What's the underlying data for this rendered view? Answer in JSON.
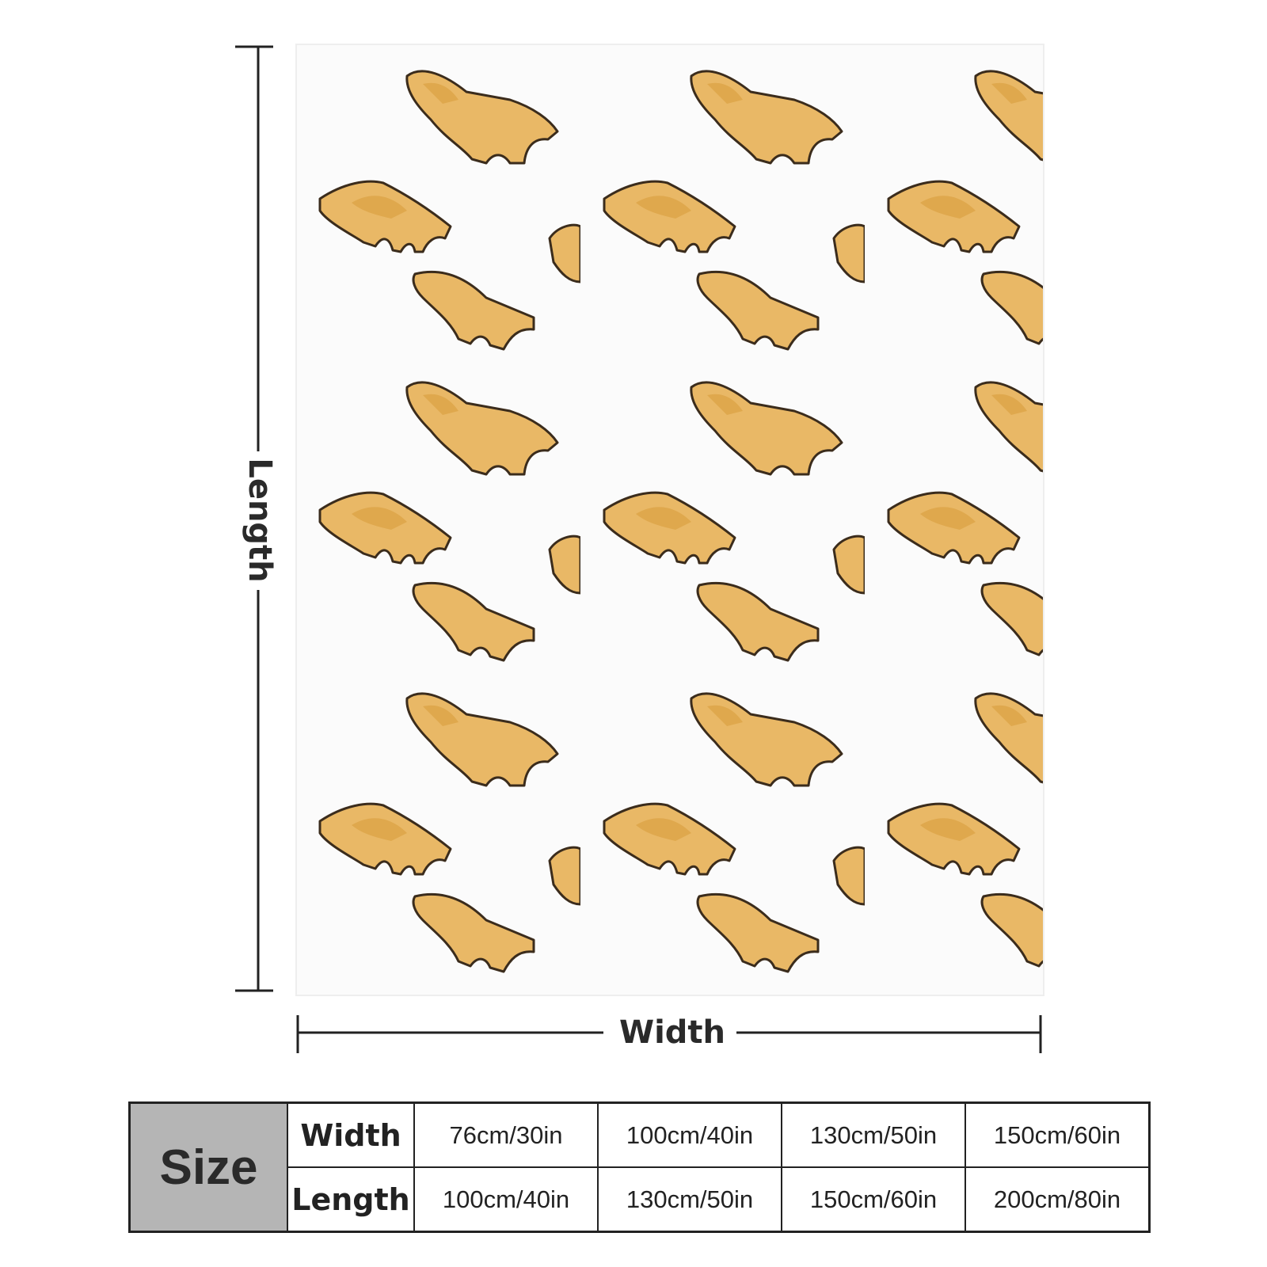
{
  "dimensions": {
    "length_label": "Length",
    "width_label": "Width"
  },
  "table": {
    "header": "Size",
    "rows": [
      [
        "Width",
        "76cm/30in",
        "100cm/40in",
        "130cm/50in",
        "150cm/60in"
      ],
      [
        "Length",
        "100cm/40in",
        "130cm/50in",
        "150cm/60in",
        "200cm/80in"
      ]
    ]
  }
}
